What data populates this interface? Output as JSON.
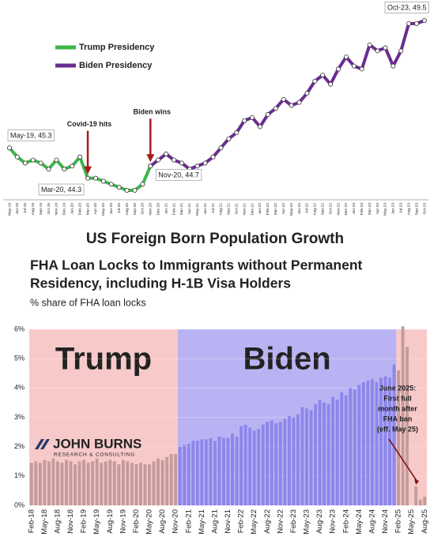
{
  "chart_data": [
    {
      "type": "line",
      "title": "US Foreign Born Population Growth",
      "categories": [
        "May-19",
        "Jun-19",
        "Jul-19",
        "Aug-19",
        "Sep-19",
        "Oct-19",
        "Nov-19",
        "Dec-19",
        "Jan-20",
        "Feb-20",
        "Mar-20",
        "Apr-20",
        "May-20",
        "Jun-20",
        "Jul-20",
        "Aug-20",
        "Sep-20",
        "Oct-20",
        "Nov-20",
        "Dec-20",
        "Jan-21",
        "Feb-21",
        "Mar-21",
        "Apr-21",
        "May-21",
        "Jun-21",
        "Jul-21",
        "Aug-21",
        "Sep-21",
        "Oct-21",
        "Nov-21",
        "Dec-21",
        "Jan-22",
        "Feb-22",
        "Mar-22",
        "Apr-22",
        "May-22",
        "Jun-22",
        "Jul-22",
        "Aug-22",
        "Sep-22",
        "Oct-22",
        "Nov-22",
        "Dec-22",
        "Jan-23",
        "Feb-23",
        "Mar-23",
        "Apr-23",
        "May-23",
        "Jun-23",
        "Jul-23",
        "Aug-23",
        "Sep-23",
        "Oct-23"
      ],
      "series": [
        {
          "name": "Trump Presidency",
          "color": "#3db54a",
          "values": [
            45.3,
            45.0,
            44.8,
            44.9,
            44.8,
            44.6,
            44.9,
            44.6,
            44.7,
            45.0,
            44.3,
            44.3,
            44.2,
            44.1,
            44.0,
            43.9,
            43.9,
            44.1,
            44.7,
            null,
            null,
            null,
            null,
            null,
            null,
            null,
            null,
            null,
            null,
            null,
            null,
            null,
            null,
            null,
            null,
            null,
            null,
            null,
            null,
            null,
            null,
            null,
            null,
            null,
            null,
            null,
            null,
            null,
            null,
            null,
            null,
            null,
            null,
            null
          ]
        },
        {
          "name": "Biden Presidency",
          "color": "#6b2c91",
          "values": [
            null,
            null,
            null,
            null,
            null,
            null,
            null,
            null,
            null,
            null,
            null,
            null,
            null,
            null,
            null,
            null,
            null,
            null,
            44.7,
            44.9,
            45.1,
            44.9,
            44.8,
            44.6,
            44.7,
            44.8,
            45.0,
            45.3,
            45.6,
            45.8,
            46.2,
            46.3,
            46.0,
            46.4,
            46.6,
            46.9,
            46.7,
            46.8,
            47.1,
            47.5,
            47.7,
            47.4,
            47.9,
            48.3,
            48.0,
            47.9,
            48.7,
            48.5,
            48.6,
            48.0,
            48.5,
            49.4,
            49.4,
            49.5
          ]
        }
      ],
      "legend": "upper left",
      "annotations": [
        {
          "label": "May-19, 45.3",
          "x": "May-19"
        },
        {
          "label": "Mar-20, 44.3",
          "x": "Mar-20"
        },
        {
          "label": "Nov-20, 44.7",
          "x": "Nov-20"
        },
        {
          "label": "Oct-23, 49.5",
          "x": "Oct-23"
        }
      ],
      "callouts": [
        {
          "label": "Covid-19 hits",
          "x": "Mar-20",
          "color": "#a51c1c"
        },
        {
          "label": "Biden wins",
          "x": "Nov-20",
          "color": "#a51c1c"
        }
      ]
    },
    {
      "type": "bar",
      "title": [
        "FHA Loan Locks to Immigrants without Permanent",
        "Residency, including H-1B Visa Holders"
      ],
      "subtitle": "% share of FHA loan locks",
      "categories": [
        "Feb-18",
        null,
        null,
        "May-18",
        null,
        null,
        "Aug-18",
        null,
        null,
        "Nov-18",
        null,
        null,
        "Feb-19",
        null,
        null,
        "May-19",
        null,
        null,
        "Aug-19",
        null,
        null,
        "Nov-19",
        null,
        null,
        "Feb-20",
        null,
        null,
        "May-20",
        null,
        null,
        "Aug-20",
        null,
        null,
        "Nov-20",
        null,
        null,
        "Feb-21",
        null,
        null,
        "May-21",
        null,
        null,
        "Aug-21",
        null,
        null,
        "Nov-21",
        null,
        null,
        "Feb-22",
        null,
        null,
        "May-22",
        null,
        null,
        "Aug-22",
        null,
        null,
        "Nov-22",
        null,
        null,
        "Feb-23",
        null,
        null,
        "May-23",
        null,
        null,
        "Aug-23",
        null,
        null,
        "Nov-23",
        null,
        null,
        "Feb-24",
        null,
        null,
        "May-24",
        null,
        null,
        "Aug-24",
        null,
        null,
        "Nov-24",
        null,
        null,
        "Feb-25",
        null,
        null,
        "May-25",
        null,
        null,
        "Aug-25"
      ],
      "series": [
        {
          "name": "Trump",
          "color": "#c49b9b",
          "background": "#f8c9c9",
          "values": [
            1.45,
            1.5,
            1.45,
            1.55,
            1.5,
            1.6,
            1.5,
            1.45,
            1.55,
            1.5,
            1.4,
            1.5,
            1.55,
            1.45,
            1.5,
            1.6,
            1.45,
            1.5,
            1.55,
            1.5,
            1.4,
            1.55,
            1.5,
            1.45,
            1.4,
            1.45,
            1.4,
            1.4,
            1.5,
            1.6,
            1.55,
            1.65,
            1.75,
            1.75,
            null,
            null,
            null,
            null,
            null,
            null,
            null,
            null,
            null,
            null,
            null,
            null,
            null,
            null,
            null,
            null,
            null,
            null,
            null,
            null,
            null,
            null,
            null,
            null,
            null,
            null,
            null,
            null,
            null,
            null,
            null,
            null,
            null,
            null,
            null,
            null,
            null,
            null,
            null,
            null,
            null,
            null,
            null,
            null,
            null,
            null,
            null,
            null,
            null,
            null,
            4.6,
            6.1,
            5.4,
            null,
            0.65,
            0.2,
            0.3
          ]
        },
        {
          "name": "Biden",
          "color": "#8d86ea",
          "background": "#bab3f3",
          "values": [
            null,
            null,
            null,
            null,
            null,
            null,
            null,
            null,
            null,
            null,
            null,
            null,
            null,
            null,
            null,
            null,
            null,
            null,
            null,
            null,
            null,
            null,
            null,
            null,
            null,
            null,
            null,
            null,
            null,
            null,
            null,
            null,
            null,
            null,
            2.0,
            2.05,
            2.1,
            2.2,
            2.2,
            2.25,
            2.25,
            2.3,
            2.2,
            2.35,
            2.3,
            2.3,
            2.45,
            2.35,
            2.7,
            2.75,
            2.65,
            2.55,
            2.6,
            2.75,
            2.85,
            2.9,
            2.8,
            2.85,
            2.95,
            3.05,
            3.0,
            3.1,
            3.35,
            3.3,
            3.25,
            3.45,
            3.6,
            3.5,
            3.45,
            3.7,
            3.6,
            3.85,
            3.75,
            4.0,
            3.95,
            4.1,
            4.2,
            4.25,
            4.3,
            4.2,
            4.35,
            4.4,
            4.35,
            4.8,
            null,
            null,
            null,
            null,
            null,
            null,
            null
          ]
        }
      ],
      "ylim": [
        0,
        6
      ],
      "yticks": [
        {
          "value": 0,
          "label": "0%"
        },
        {
          "value": 1,
          "label": "1%"
        },
        {
          "value": 2,
          "label": "2%"
        },
        {
          "value": 3,
          "label": "3%"
        },
        {
          "value": 4,
          "label": "4%"
        },
        {
          "value": 5,
          "label": "5%"
        },
        {
          "value": 6,
          "label": "6%"
        }
      ],
      "grid": true,
      "annotation": [
        "June 2025:",
        "First full",
        "month after",
        "FHA ban",
        "(eff. May 25)"
      ],
      "logo": {
        "name": "JOHN BURNS",
        "tagline": "RESEARCH & CONSULTING"
      }
    }
  ]
}
